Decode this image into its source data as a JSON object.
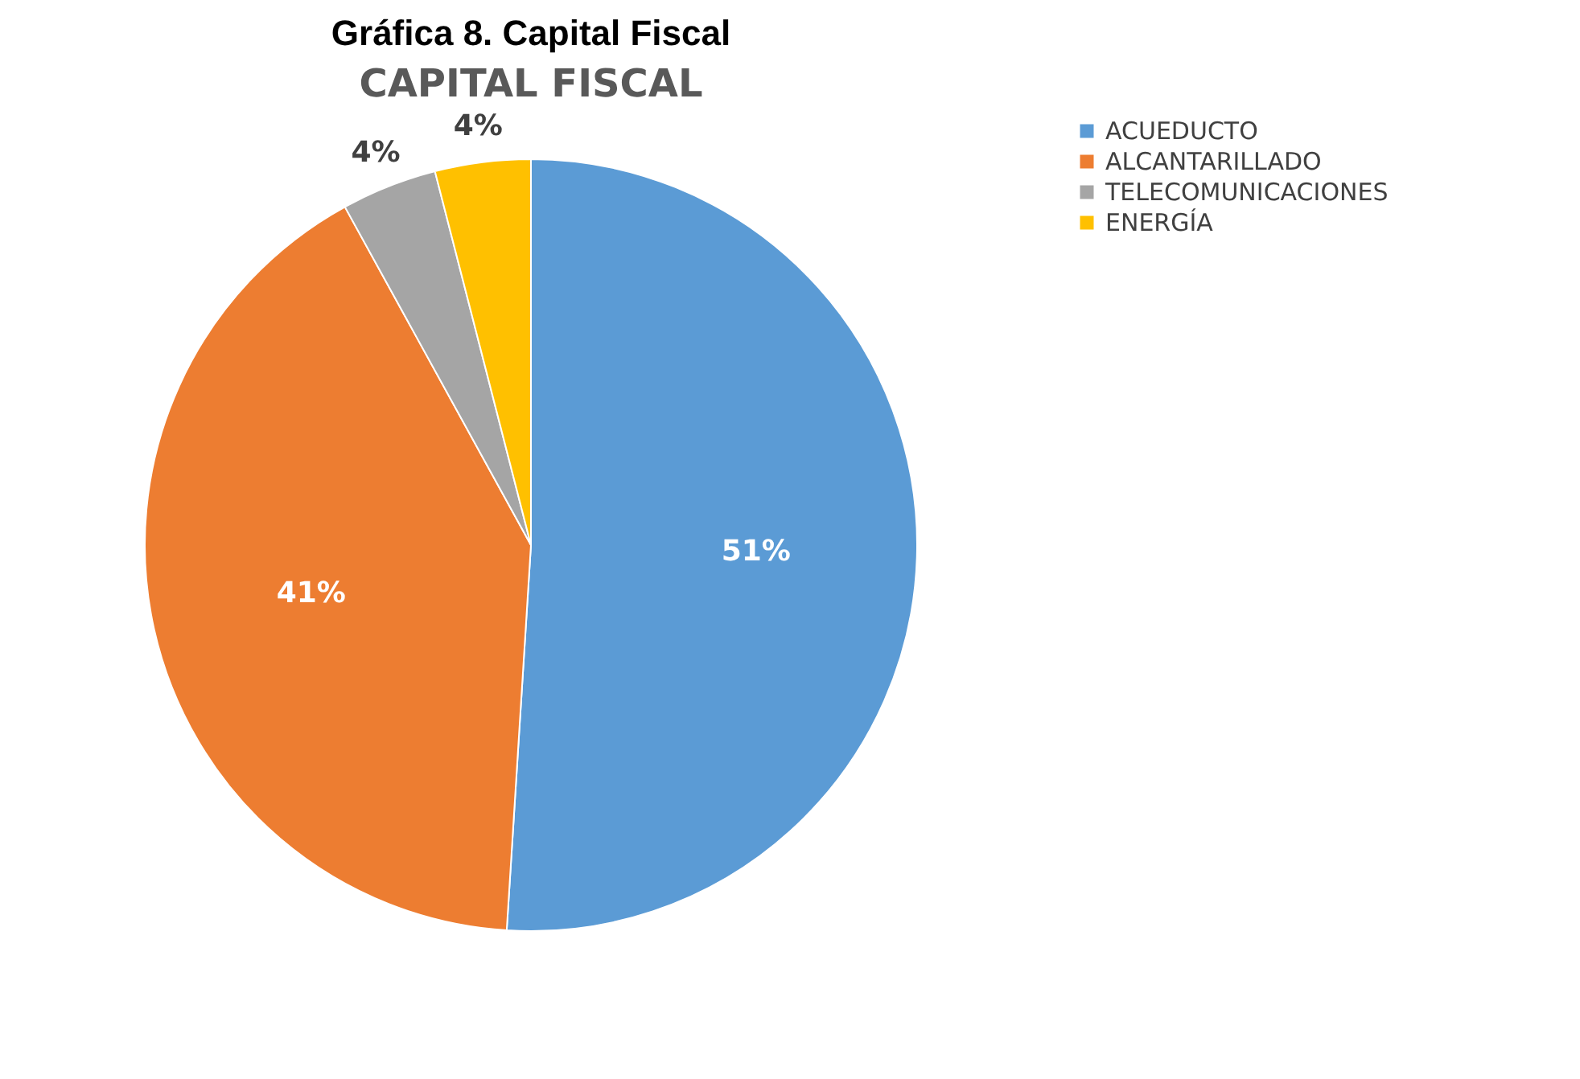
{
  "chart_data": {
    "type": "pie",
    "title": "Gráfica 8. Capital Fiscal",
    "subtitle": "CAPITAL FISCAL",
    "categories": [
      "ACUEDUCTO",
      "ALCANTARILLADO",
      "TELECOMUNICACIONES",
      "ENERGÍA"
    ],
    "values": [
      51,
      41,
      4,
      4
    ],
    "colors": [
      "#5b9bd5",
      "#ed7d31",
      "#a5a5a5",
      "#ffc000"
    ],
    "value_labels": [
      "51%",
      "41%",
      "4%",
      "4%"
    ],
    "legend": "right"
  }
}
